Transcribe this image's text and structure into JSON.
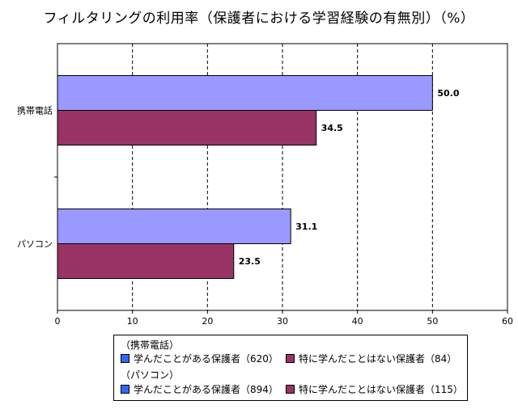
{
  "chart_data": {
    "type": "bar",
    "orientation": "horizontal",
    "title": "フィルタリングの利用率（保護者における学習経験の有無別）（%）",
    "categories": [
      "携帯電話",
      "パソコン"
    ],
    "series": [
      {
        "name": "学んだことがある保護者",
        "color": "#9999ff",
        "values": [
          50.0,
          31.1
        ]
      },
      {
        "name": "特に学んだことはない保護者",
        "color": "#993366",
        "values": [
          34.5,
          23.5
        ]
      }
    ],
    "value_labels": [
      [
        "50.0",
        "31.1"
      ],
      [
        "34.5",
        "23.5"
      ]
    ],
    "xlim": [
      0,
      60
    ],
    "xticks": [
      0,
      10,
      20,
      30,
      40,
      50,
      60
    ],
    "grid": "vertical dashed",
    "legend_position": "bottom"
  },
  "legend": {
    "groups": [
      {
        "title": "（携帯電話）",
        "items": [
          {
            "label": "学んだことがある保護者（620）",
            "color": "#3366ff"
          },
          {
            "label": "特に学んだことはない保護者（84）",
            "color": "#993366"
          }
        ]
      },
      {
        "title": "（パソコン）",
        "items": [
          {
            "label": "学んだことがある保護者（894）",
            "color": "#3366ff"
          },
          {
            "label": "特に学んだことはない保護者（115）",
            "color": "#993366"
          }
        ]
      }
    ]
  }
}
